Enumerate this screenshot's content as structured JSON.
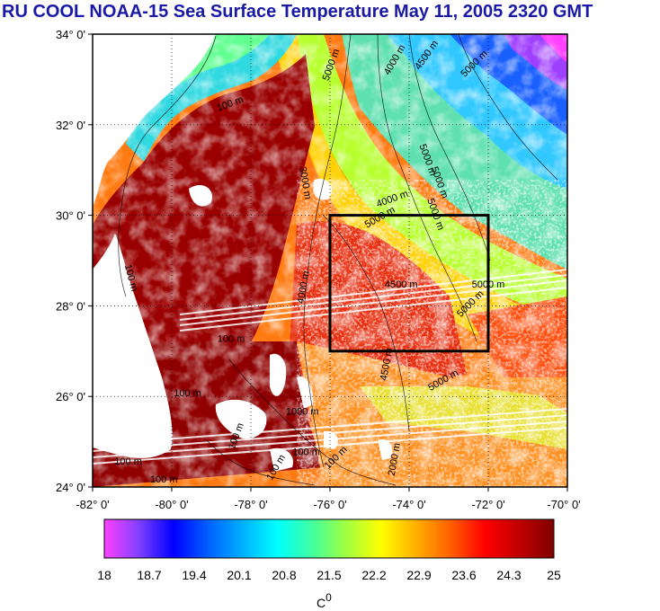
{
  "title": "RU COOL  NOAA-15 Sea Surface Temperature May 11, 2005 2320 GMT",
  "map": {
    "lat_labels": [
      "34° 0'",
      "32° 0'",
      "30° 0'",
      "28° 0'",
      "26° 0'",
      "24° 0'"
    ],
    "lon_labels": [
      "-82° 0'",
      "-80° 0'",
      "-78° 0'",
      "-76° 0'",
      "-74° 0'",
      "-72° 0'",
      "-70° 0'"
    ],
    "lat_range": [
      24,
      34
    ],
    "lon_range": [
      -82,
      -70
    ],
    "box": {
      "lon": [
        -76,
        -72
      ],
      "lat": [
        27,
        30
      ]
    },
    "contour_labels": [
      {
        "text": "5000 m",
        "lon": -75.9,
        "lat": 33.3,
        "rot": -70
      },
      {
        "text": "4000 m",
        "lon": -74.3,
        "lat": 33.4,
        "rot": -60
      },
      {
        "text": "4500 m",
        "lon": -73.5,
        "lat": 33.5,
        "rot": -55
      },
      {
        "text": "5000 m",
        "lon": -72.3,
        "lat": 33.3,
        "rot": -45
      },
      {
        "text": "100 m",
        "lon": -78.5,
        "lat": 32.4,
        "rot": -20
      },
      {
        "text": "5000 m",
        "lon": -73.6,
        "lat": 31.2,
        "rot": 70
      },
      {
        "text": "5000 m",
        "lon": -73.3,
        "lat": 30.7,
        "rot": 70
      },
      {
        "text": "4000 m",
        "lon": -74.4,
        "lat": 30.3,
        "rot": -20
      },
      {
        "text": "5000 m",
        "lon": -73.4,
        "lat": 30.0,
        "rot": 70
      },
      {
        "text": "3000 m",
        "lon": -76.7,
        "lat": 30.7,
        "rot": 80
      },
      {
        "text": "5000 m",
        "lon": -74.7,
        "lat": 29.9,
        "rot": -30
      },
      {
        "text": "4500 m",
        "lon": -74.2,
        "lat": 28.4,
        "rot": 0
      },
      {
        "text": "4000 m",
        "lon": -76.6,
        "lat": 28.4,
        "rot": -80
      },
      {
        "text": "5000 m",
        "lon": -72.4,
        "lat": 28.0,
        "rot": -45
      },
      {
        "text": "5000 m",
        "lon": -72.0,
        "lat": 28.4,
        "rot": 0
      },
      {
        "text": "4500 m",
        "lon": -74.5,
        "lat": 26.7,
        "rot": -80
      },
      {
        "text": "5000 m",
        "lon": -73.1,
        "lat": 26.3,
        "rot": -30
      },
      {
        "text": "100 m",
        "lon": -81.1,
        "lat": 28.6,
        "rot": 75
      },
      {
        "text": "100 m",
        "lon": -78.5,
        "lat": 27.2,
        "rot": 0
      },
      {
        "text": "100 m",
        "lon": -79.6,
        "lat": 26.0,
        "rot": 0
      },
      {
        "text": "100 m",
        "lon": -78.3,
        "lat": 25.1,
        "rot": -70
      },
      {
        "text": "1000 m",
        "lon": -76.7,
        "lat": 25.6,
        "rot": 0
      },
      {
        "text": "100 m",
        "lon": -81.1,
        "lat": 24.5,
        "rot": 0
      },
      {
        "text": "100 m",
        "lon": -76.6,
        "lat": 24.7,
        "rot": 0
      },
      {
        "text": "100 m",
        "lon": -75.8,
        "lat": 24.6,
        "rot": -45
      },
      {
        "text": "100 m",
        "lon": -77.3,
        "lat": 24.4,
        "rot": -60
      },
      {
        "text": "100 m",
        "lon": -80.2,
        "lat": 24.1,
        "rot": 0
      },
      {
        "text": "2000 m",
        "lon": -74.3,
        "lat": 24.6,
        "rot": -80
      }
    ]
  },
  "colorbar": {
    "tick_labels": [
      "18",
      "18.7",
      "19.4",
      "20.1",
      "20.8",
      "21.5",
      "22.2",
      "22.9",
      "23.6",
      "24.3",
      "25"
    ],
    "unit_label": "C",
    "unit_superscript": "0",
    "colors": [
      "#ff40ff",
      "#8040ff",
      "#0000ff",
      "#0060ff",
      "#00b0ff",
      "#00ffff",
      "#40ffa0",
      "#a0ff40",
      "#ffff00",
      "#ffb000",
      "#ff6000",
      "#ff0000",
      "#c00000",
      "#800000"
    ]
  },
  "colors": {
    "title": "#1a1aa6",
    "land": "#ffffff",
    "warm": "#8b0000",
    "box": "#000000"
  }
}
